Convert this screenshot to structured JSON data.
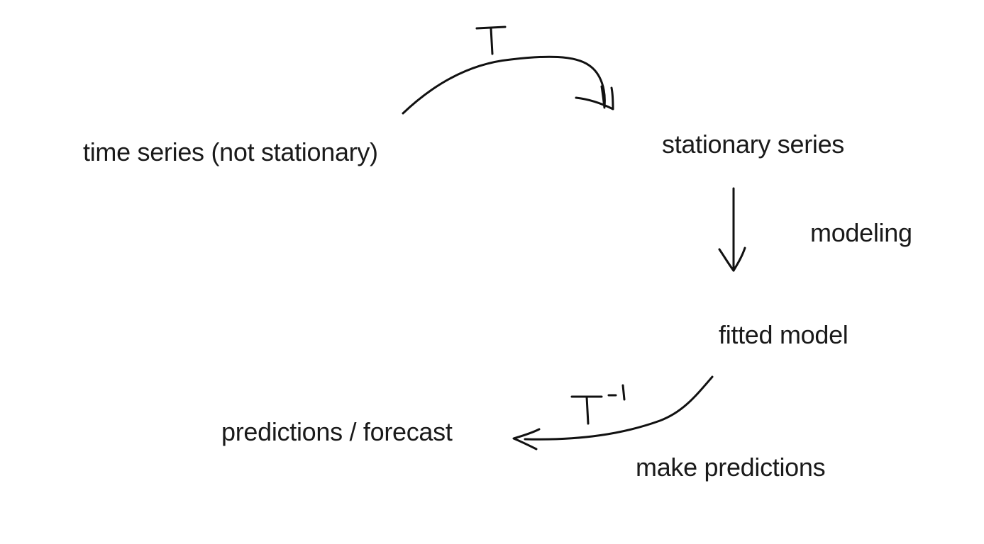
{
  "nodes": {
    "time_series": "time series (not stationary)",
    "stationary_series": "stationary series",
    "fitted_model": "fitted model",
    "predictions": "predictions / forecast"
  },
  "edge_labels": {
    "modeling": "modeling",
    "make_predictions": "make predictions"
  },
  "handwritten_symbols": {
    "transform": "T",
    "inverse_transform": "T^-1"
  }
}
